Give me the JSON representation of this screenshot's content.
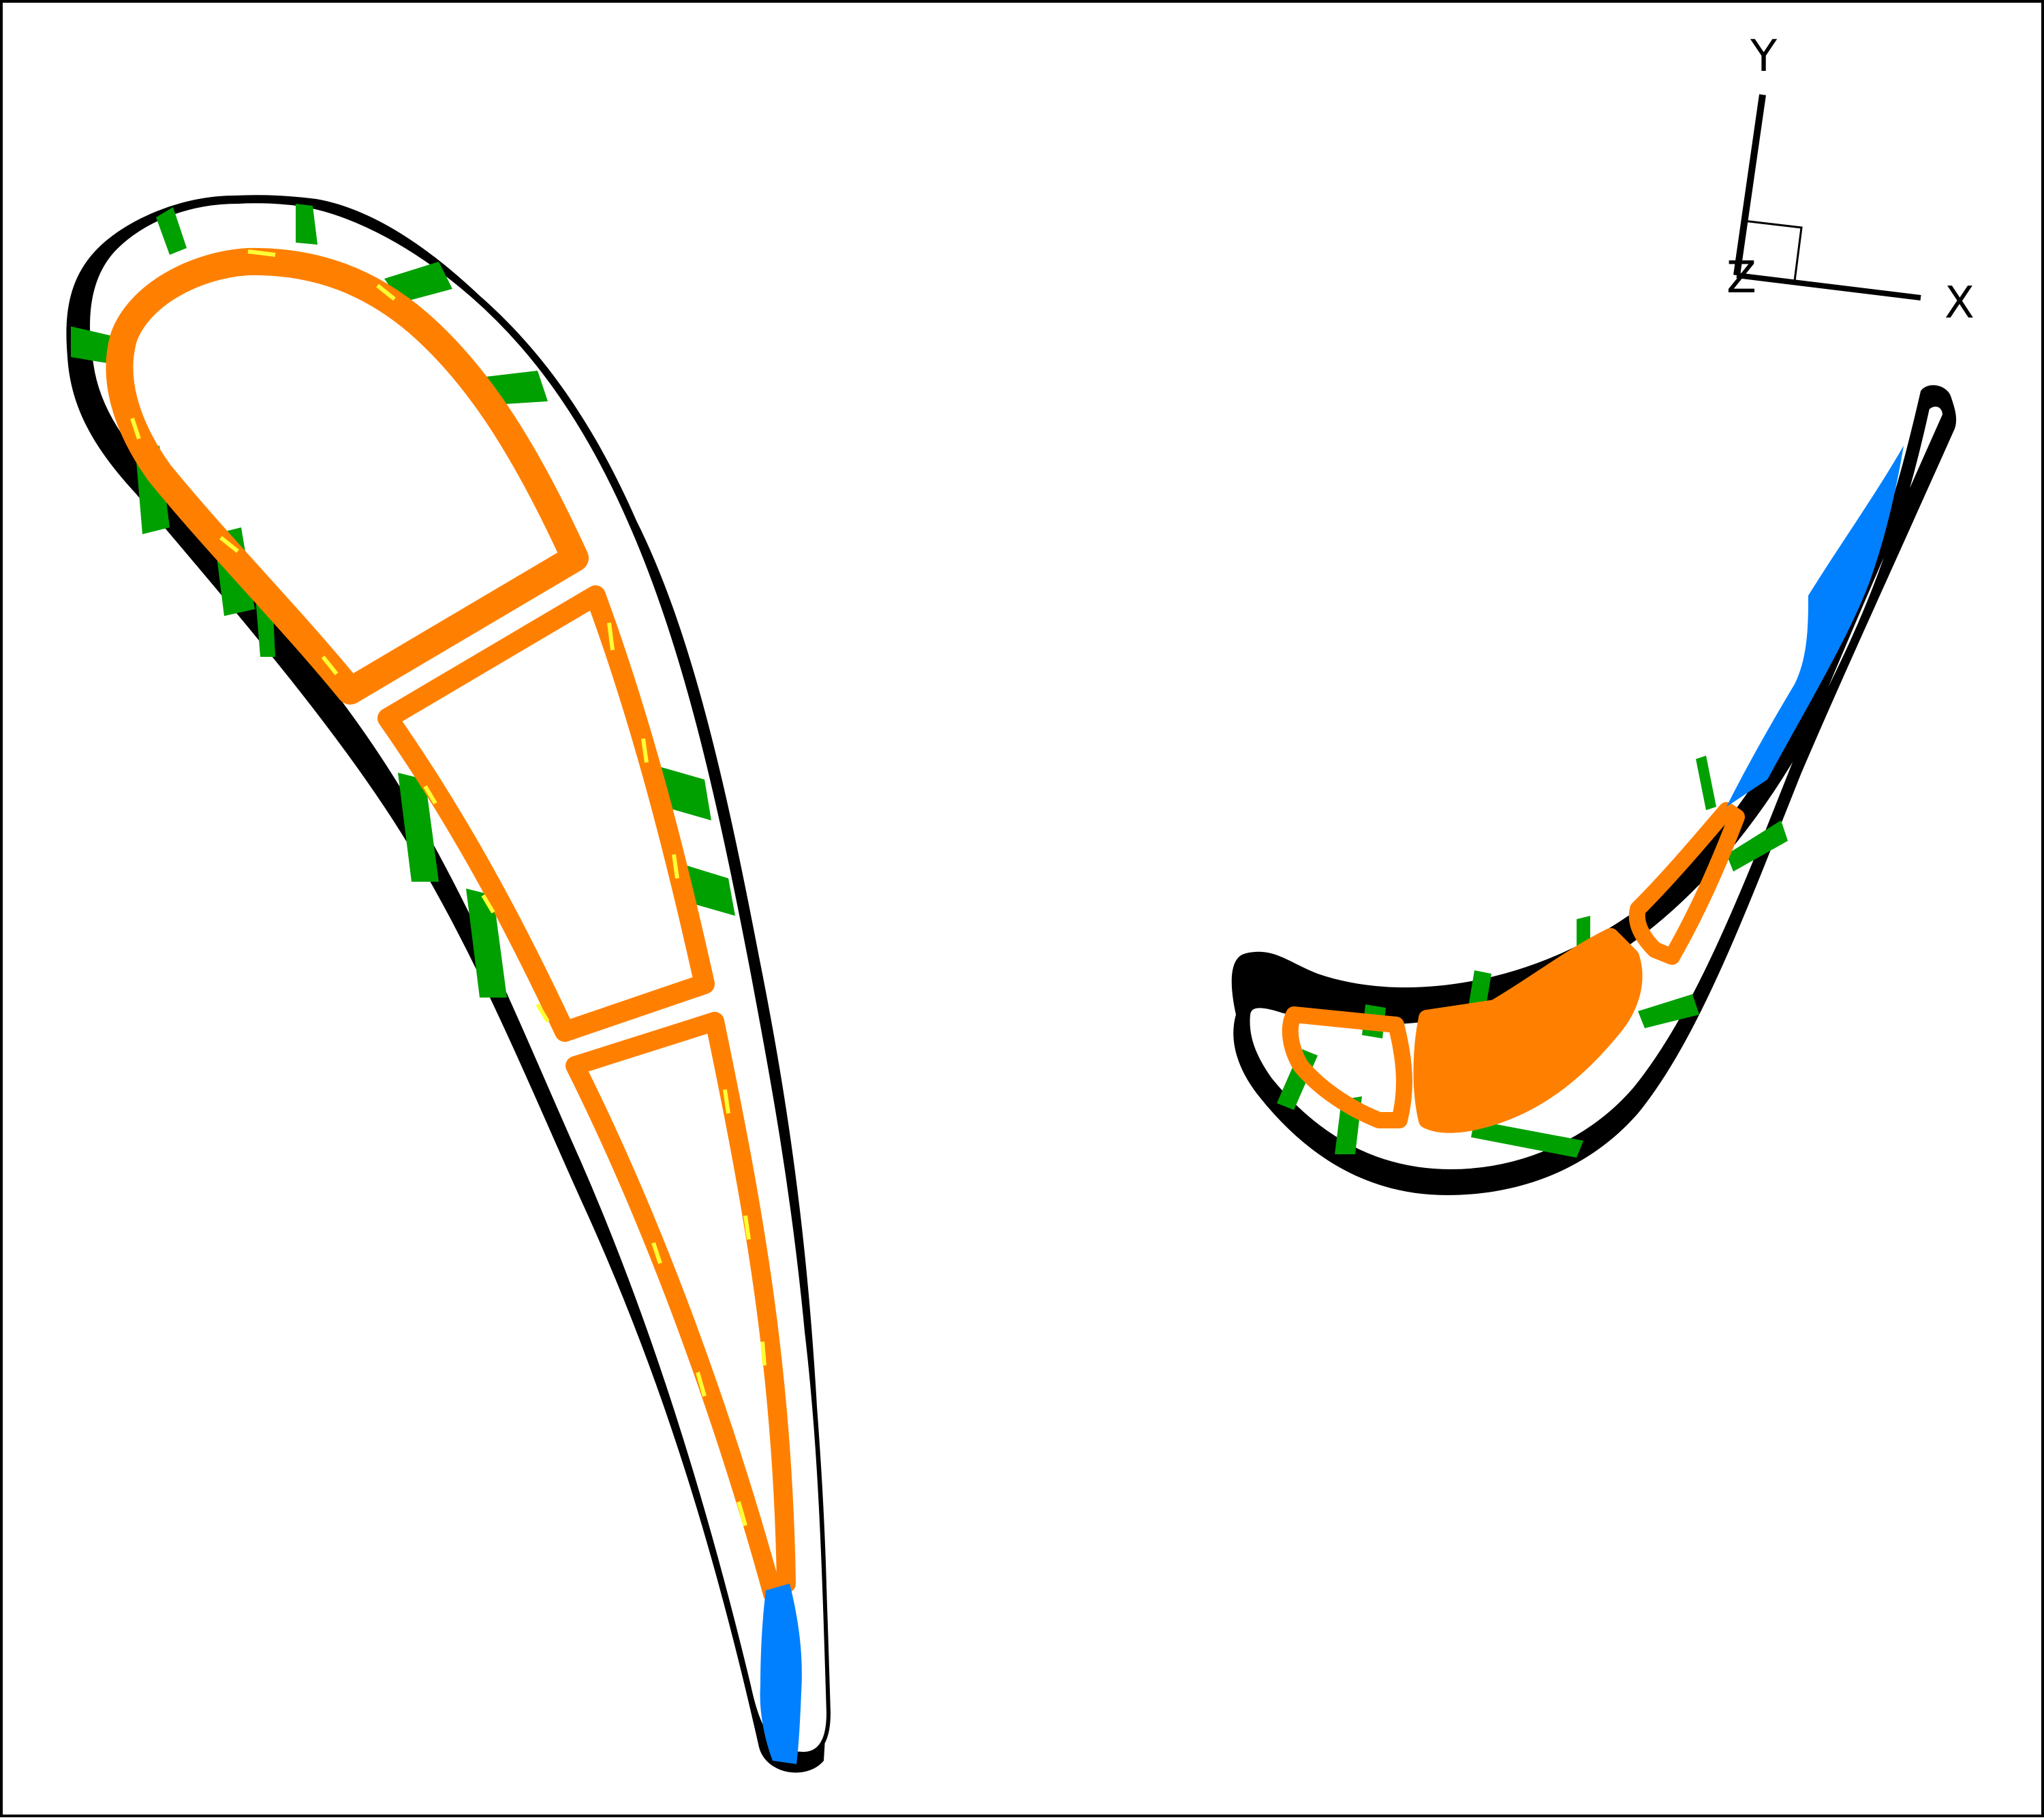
{
  "axes": {
    "y_label": "Y",
    "x_label": "X",
    "z_label": "Z"
  },
  "colors": {
    "outline": "#000000",
    "cavity": "#ff8000",
    "rib": "#00a000",
    "trailing_edge": "#0080ff",
    "highlight": "#ffff33",
    "background": "#ffffff"
  }
}
